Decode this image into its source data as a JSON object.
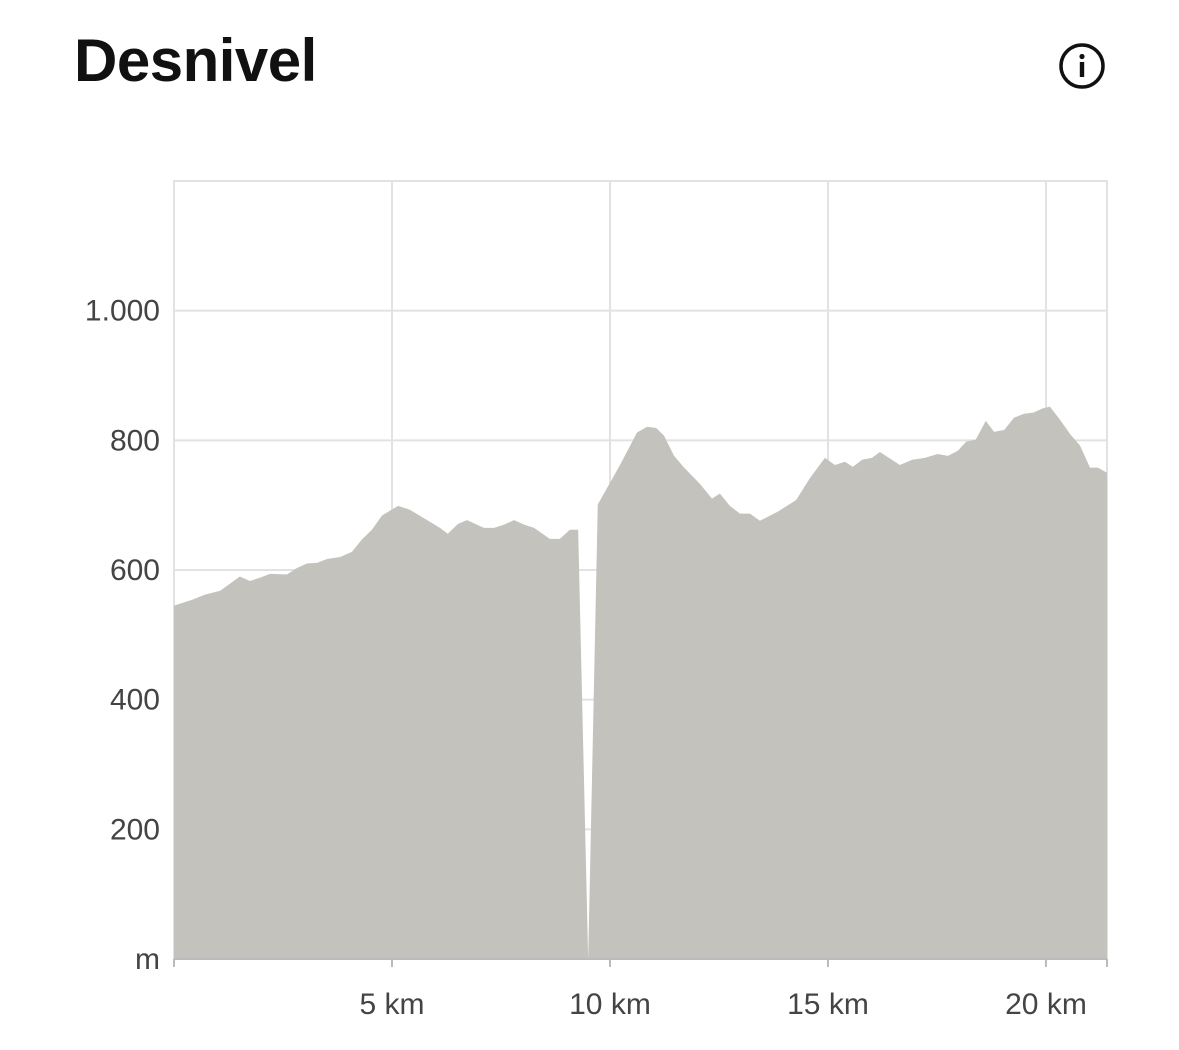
{
  "header": {
    "title": "Desnivel"
  },
  "chart_data": {
    "type": "area",
    "color": "#c3c2bd",
    "grid": true,
    "x": [
      0,
      0.41,
      0.71,
      1.06,
      1.51,
      1.74,
      1.97,
      2.2,
      2.59,
      2.82,
      3.05,
      3.28,
      3.51,
      3.81,
      4.08,
      4.31,
      4.54,
      4.77,
      5.14,
      5.41,
      5.83,
      6.1,
      6.28,
      6.51,
      6.72,
      7.11,
      7.34,
      7.57,
      7.8,
      8.03,
      8.26,
      8.62,
      8.85,
      9.08,
      9.27,
      9.5,
      9.72,
      10.23,
      10.62,
      10.85,
      11.06,
      11.24,
      11.47,
      11.7,
      12.06,
      12.34,
      12.52,
      12.75,
      12.98,
      13.21,
      13.44,
      13.85,
      14.27,
      14.59,
      14.93,
      15.16,
      15.39,
      15.57,
      15.78,
      16.01,
      16.19,
      16.42,
      16.65,
      16.93,
      17.22,
      17.52,
      17.75,
      17.98,
      18.17,
      18.39,
      18.62,
      18.81,
      19.04,
      19.27,
      19.5,
      19.72,
      19.91,
      20.09,
      20.32,
      20.55,
      20.78,
      21.01,
      21.19,
      21.4
    ],
    "values": [
      545,
      554,
      562,
      568,
      590,
      583,
      588,
      594,
      593,
      603,
      610,
      611,
      617,
      620,
      628,
      647,
      662,
      684,
      699,
      693,
      676,
      665,
      656,
      671,
      677,
      665,
      665,
      670,
      677,
      670,
      665,
      648,
      648,
      662,
      662,
      0,
      701,
      762,
      812,
      821,
      819,
      807,
      776,
      758,
      733,
      710,
      718,
      699,
      687,
      687,
      676,
      690,
      708,
      742,
      773,
      762,
      767,
      759,
      770,
      773,
      782,
      772,
      762,
      770,
      773,
      779,
      776,
      784,
      798,
      801,
      830,
      813,
      816,
      835,
      841,
      843,
      849,
      852,
      832,
      810,
      792,
      758,
      758,
      750
    ],
    "xlim": [
      0,
      21.4
    ],
    "ylim": [
      0,
      1200
    ],
    "xticks": [
      {
        "value": 5,
        "label": "5 km"
      },
      {
        "value": 10,
        "label": "10 km"
      },
      {
        "value": 15,
        "label": "15 km"
      },
      {
        "value": 20,
        "label": "20 km"
      }
    ],
    "yticks": [
      {
        "value": 0,
        "label": "m"
      },
      200,
      400,
      600,
      800,
      {
        "value": 1000,
        "label": "1.000"
      }
    ]
  }
}
